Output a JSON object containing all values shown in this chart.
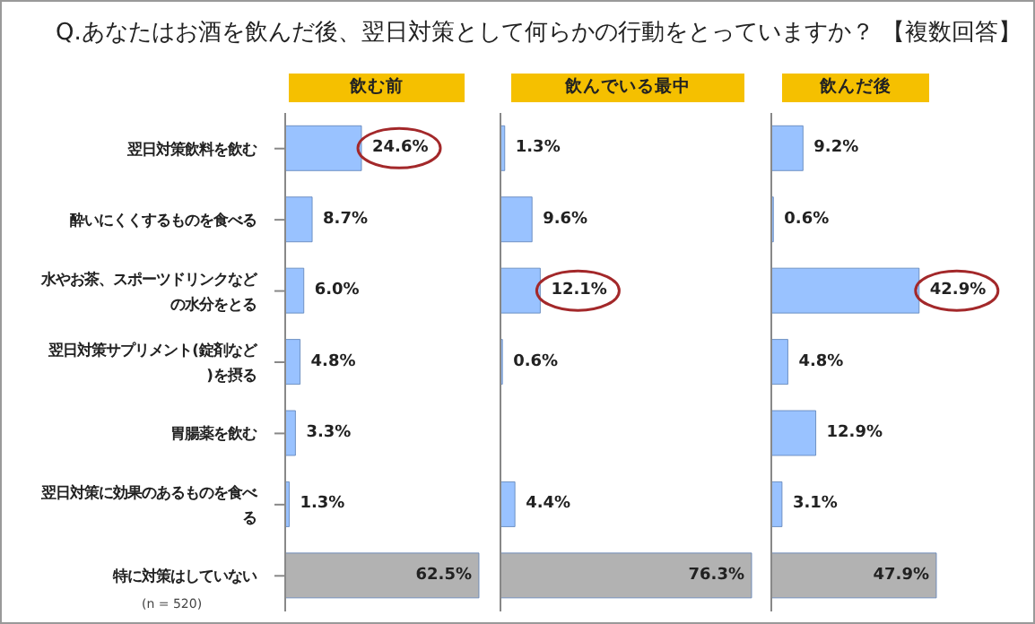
{
  "chart_data": [
    {
      "type": "bar",
      "orientation": "horizontal",
      "title": "Q.あなたはお酒を飲んだ後、翌日対策として何らかの行動をとっていますか？ 【複数回答】",
      "categories": [
        "翌日対策飲料を飲む",
        "酔いにくくするものを食べる",
        "水やお茶、スポーツドリンクなどの水分をとる",
        "翌日対策サプリメント(錠剤など)を摂る",
        "胃腸薬を飲む",
        "翌日対策に効果のあるものを食べる",
        "特に対策はしていない"
      ],
      "tick_labels": "y",
      "annotations": [
        "(n = 520)"
      ],
      "series": [
        {
          "name": "飲む前",
          "color": "#99c2ff",
          "colors": [
            "#99c2ff",
            "#99c2ff",
            "#99c2ff",
            "#99c2ff",
            "#99c2ff",
            "#99c2ff",
            "#b2b2b2"
          ],
          "values": [
            24.6,
            8.7,
            6.0,
            4.8,
            3.3,
            1.3,
            62.5
          ],
          "value_labels": [
            "24.6%",
            "8.7%",
            "6.0%",
            "4.8%",
            "3.3%",
            "1.3%",
            "62.5%"
          ]
        }
      ]
    },
    {
      "type": "bar",
      "orientation": "horizontal",
      "categories": [
        null,
        null,
        null,
        null,
        null,
        null,
        null
      ],
      "tick_labels": false,
      "series": [
        {
          "name": "飲んでいる最中",
          "color": "#99c2ff",
          "colors": [
            "#99c2ff",
            "#99c2ff",
            "#99c2ff",
            "#99c2ff",
            "#99c2ff",
            "#99c2ff",
            "#b2b2b2"
          ],
          "values": [
            1.3,
            9.6,
            12.1,
            0.6,
            null,
            4.4,
            76.3
          ],
          "value_labels": [
            "1.3%",
            "9.6%",
            "12.1%",
            "0.6%",
            null,
            "4.4%",
            "76.3%"
          ]
        }
      ]
    },
    {
      "type": "bar",
      "orientation": "horizontal",
      "categories": [
        null,
        null,
        null,
        null,
        null,
        null,
        null
      ],
      "tick_labels": false,
      "series": [
        {
          "name": "飲んだ後",
          "color": "#99c2ff",
          "colors": [
            "#99c2ff",
            "#99c2ff",
            "#99c2ff",
            "#99c2ff",
            "#99c2ff",
            "#99c2ff",
            "#b2b2b2"
          ],
          "values": [
            9.2,
            0.6,
            42.9,
            4.8,
            12.9,
            3.1,
            47.9
          ],
          "value_labels": [
            "9.2%",
            "0.6%",
            "42.9%",
            "4.8%",
            "12.9%",
            "3.1%",
            "47.9%"
          ]
        }
      ]
    }
  ]
}
